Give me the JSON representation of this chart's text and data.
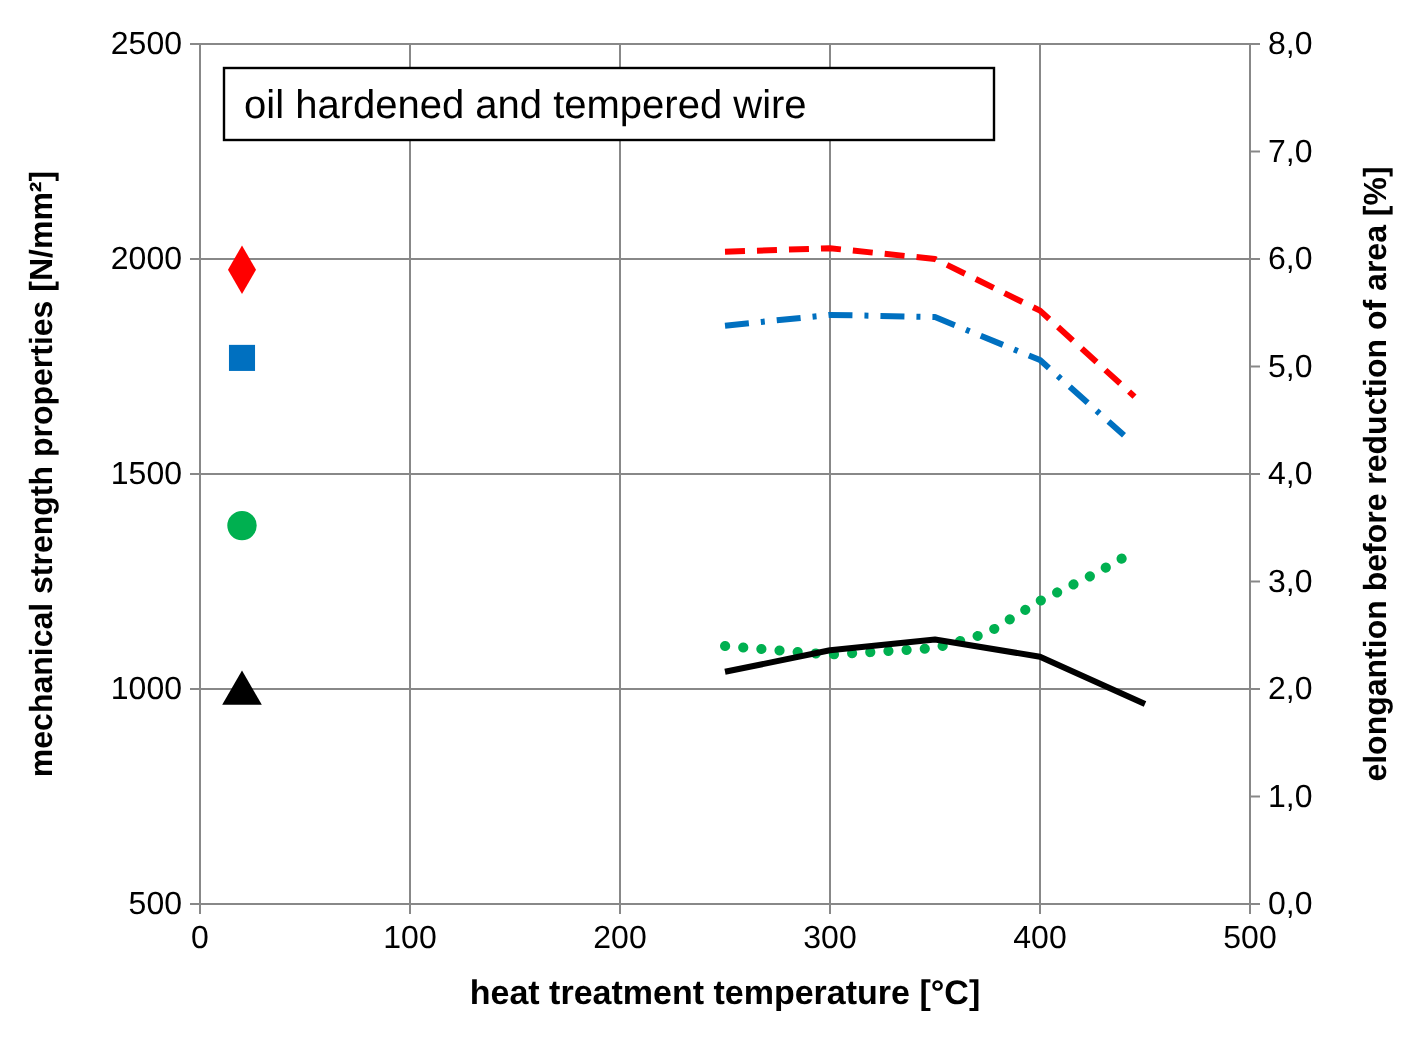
{
  "chart_data": {
    "type": "line",
    "xlabel": "heat treatment temperature [°C]",
    "ylabel": "mechanical strength properties [N/mm²]",
    "y2label": "elongantion before reduction of area [%]",
    "annotations": [
      "oil hardened and tempered wire"
    ],
    "xlim": [
      0,
      500
    ],
    "xticks": [
      0,
      100,
      200,
      300,
      400,
      500
    ],
    "ylim": [
      500,
      2500
    ],
    "yticks": [
      500,
      1000,
      1500,
      2000,
      2500
    ],
    "y2lim": [
      0,
      8
    ],
    "y2ticks": [
      {
        "value": 0,
        "label": "0,0"
      },
      {
        "value": 1,
        "label": "1,0"
      },
      {
        "value": 2,
        "label": "2,0"
      },
      {
        "value": 3,
        "label": "3,0"
      },
      {
        "value": 4,
        "label": "4,0"
      },
      {
        "value": 5,
        "label": "5,0"
      },
      {
        "value": 6,
        "label": "6,0"
      },
      {
        "value": 7,
        "label": "7,0"
      },
      {
        "value": 8,
        "label": "8,0"
      }
    ],
    "grid": true,
    "series": [
      {
        "color": "#ff0000",
        "line_style": "dashed",
        "x": [
          250,
          300,
          350,
          400,
          445
        ],
        "values": [
          2017,
          2025,
          2000,
          1880,
          1680
        ]
      },
      {
        "color": "#0070c0",
        "line_style": "dashdot",
        "x": [
          250,
          300,
          350,
          400,
          440
        ],
        "values": [
          1845,
          1870,
          1865,
          1765,
          1590
        ]
      },
      {
        "color": "#00b050",
        "line_style": "dotted",
        "x": [
          250,
          300,
          350,
          375,
          400,
          425,
          445
        ],
        "values": [
          1100,
          1080,
          1095,
          1130,
          1205,
          1265,
          1320
        ]
      },
      {
        "color": "#000000",
        "line_style": "solid",
        "x": [
          250,
          300,
          350,
          400,
          450
        ],
        "values": [
          1040,
          1090,
          1115,
          1075,
          965
        ]
      },
      {
        "type": "scatter",
        "color": "#ff0000",
        "marker": "diamond",
        "x": [
          20
        ],
        "values": [
          1975
        ]
      },
      {
        "type": "scatter",
        "color": "#0070c0",
        "marker": "square",
        "x": [
          20
        ],
        "values": [
          1770
        ]
      },
      {
        "type": "scatter",
        "color": "#00b050",
        "marker": "circle",
        "x": [
          20
        ],
        "values": [
          1380
        ]
      },
      {
        "type": "scatter",
        "color": "#000000",
        "marker": "triangle",
        "x": [
          20
        ],
        "values": [
          990
        ]
      }
    ]
  }
}
